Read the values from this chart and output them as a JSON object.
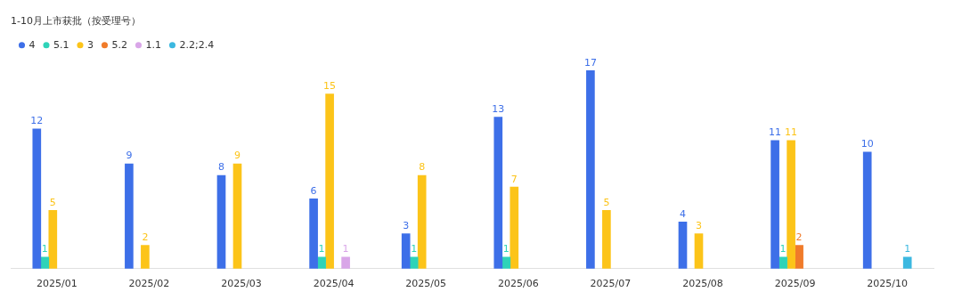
{
  "chart_data": {
    "type": "bar",
    "title": "1-10月上市获批（按受理号）",
    "categories": [
      "2025/01",
      "2025/02",
      "2025/03",
      "2025/04",
      "2025/05",
      "2025/06",
      "2025/07",
      "2025/08",
      "2025/09",
      "2025/10"
    ],
    "series": [
      {
        "name": "4",
        "color": "#3d6fe8",
        "values": [
          12,
          9,
          8,
          6,
          3,
          13,
          17,
          4,
          11,
          10
        ]
      },
      {
        "name": "5.1",
        "color": "#2fd3b8",
        "values": [
          1,
          null,
          null,
          1,
          1,
          1,
          null,
          null,
          1,
          null
        ]
      },
      {
        "name": "3",
        "color": "#fcc419",
        "values": [
          5,
          2,
          9,
          15,
          8,
          7,
          5,
          3,
          11,
          null
        ]
      },
      {
        "name": "5.2",
        "color": "#f07b2a",
        "values": [
          null,
          null,
          null,
          null,
          null,
          null,
          null,
          null,
          2,
          null
        ]
      },
      {
        "name": "1.1",
        "color": "#d9a6e8",
        "values": [
          null,
          null,
          null,
          1,
          null,
          null,
          null,
          null,
          null,
          null
        ]
      },
      {
        "name": "2.2;2.4",
        "color": "#3cb8e0",
        "values": [
          null,
          null,
          null,
          null,
          null,
          null,
          null,
          null,
          null,
          1
        ]
      }
    ],
    "data_labels": true,
    "legend": "top left",
    "grid": false,
    "tick_labels": "x"
  }
}
